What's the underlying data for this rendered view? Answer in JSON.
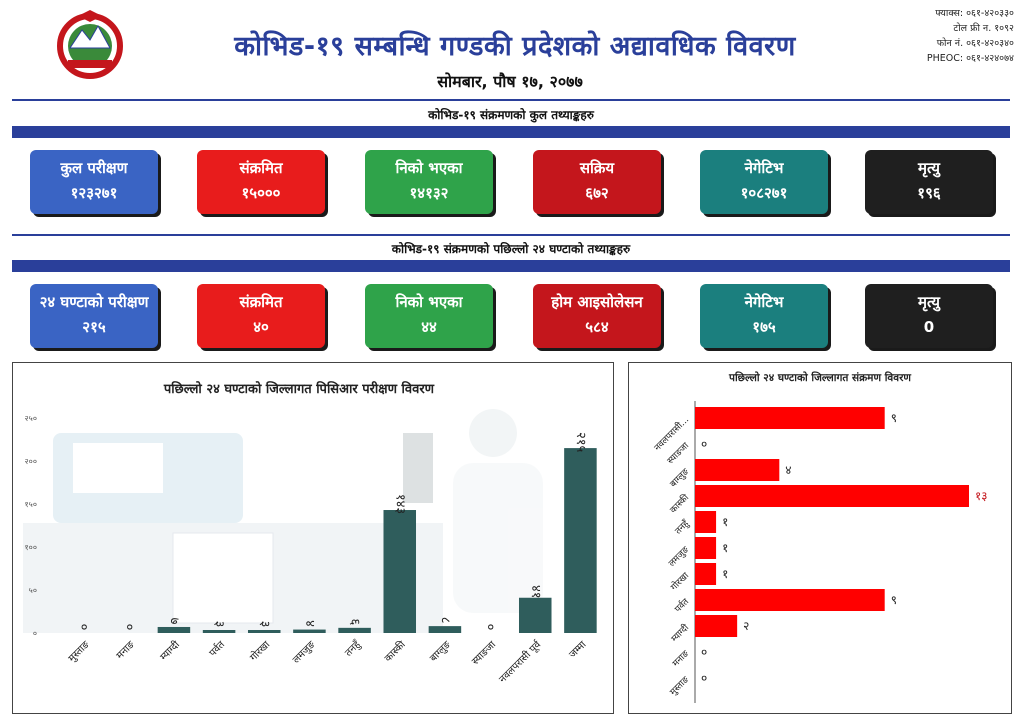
{
  "header": {
    "title": "कोभिड-१९ सम्बन्धि गण्डकी प्रदेशको अद्यावधिक विवरण",
    "date": "सोमबार, पौष १७, २०७७",
    "contact": [
      "फ्याक्स: ०६१-४२०३३०",
      "टोल फ्री न. १०९२",
      "फोन नं. ०६१-४२०३४०",
      "PHEOC: ०६१-४२४०७४"
    ]
  },
  "totals": {
    "heading": "कोभिड-१९ संक्रमणको कुल तथ्याङ्कहरु",
    "cards": [
      {
        "label": "कुल परीक्षण",
        "value": "१२३२७१",
        "color": "blue"
      },
      {
        "label": "संक्रमित",
        "value": "१५०००",
        "color": "red"
      },
      {
        "label": "निको भएका",
        "value": "१४१३२",
        "color": "green"
      },
      {
        "label": "सक्रिय",
        "value": "६७२",
        "color": "dred"
      },
      {
        "label": "नेगेटिभ",
        "value": "१०८२७१",
        "color": "teal"
      },
      {
        "label": "मृत्यु",
        "value": "१९६",
        "color": "black"
      }
    ]
  },
  "last24": {
    "heading": "कोभिड-१९ संक्रमणको पछिल्लो २४ घण्टाको तथ्याङ्कहरु",
    "cards": [
      {
        "label": "२४ घण्टाको परीक्षण",
        "value": "२१५",
        "color": "blue"
      },
      {
        "label": "संक्रमित",
        "value": "४०",
        "color": "red"
      },
      {
        "label": "निको भएका",
        "value": "४४",
        "color": "green"
      },
      {
        "label": "होम आइसोलेसन",
        "value": "५८४",
        "color": "dred"
      },
      {
        "label": "नेगेटिभ",
        "value": "१७५",
        "color": "teal"
      },
      {
        "label": "मृत्यु",
        "value": "0",
        "color": "black"
      }
    ]
  },
  "colors": {
    "blue": "#3a64c4",
    "red": "#e81c1c",
    "green": "#2fa34a",
    "dred": "#c4161c",
    "teal": "#1b7f7e",
    "black": "#1f1f1f",
    "bar_dark": "#2f5d5c",
    "bar_red": "#ff0000",
    "brand": "#2a3f9a"
  },
  "chart_data": [
    {
      "type": "bar",
      "title": "पछिल्लो २४ घण्टाको जिल्लागत पिसिआर परीक्षण विवरण",
      "categories": [
        "मुस्ताङ",
        "मनाङ",
        "म्याग्दी",
        "पर्वत",
        "गोरखा",
        "लमजुङ",
        "तनहुँ",
        "कास्की",
        "बाग्लुङ",
        "स्याङजा",
        "नवलपरासी पूर्व",
        "जम्मा"
      ],
      "values": [
        0,
        0,
        7,
        3,
        3,
        4,
        6,
        143,
        8,
        0,
        41,
        215
      ],
      "value_labels": [
        "०",
        "०",
        "७",
        "३",
        "३",
        "४",
        "६",
        "१४३",
        "८",
        "०",
        "४१",
        "२१५"
      ],
      "yticks": [
        0,
        50,
        100,
        150,
        200,
        250
      ],
      "ytick_labels": [
        "०",
        "५०",
        "१००",
        "१५०",
        "२००",
        "२५०"
      ],
      "ylim": [
        0,
        250
      ]
    },
    {
      "type": "bar",
      "orientation": "horizontal",
      "title": "पछिल्लो २४ घण्टाको जिल्लागत संक्रमण विवरण",
      "categories": [
        "नवलपरासी...",
        "स्याङजा",
        "बाग्लुङ",
        "कास्की",
        "तनहुँ",
        "लमजुङ",
        "गोरखा",
        "पर्वत",
        "म्याग्दी",
        "मनाङ",
        "मुस्ताङ"
      ],
      "values": [
        9,
        0,
        4,
        13,
        1,
        1,
        1,
        9,
        2,
        0,
        0
      ],
      "value_labels": [
        "९",
        "०",
        "४",
        "१३",
        "१",
        "१",
        "१",
        "९",
        "२",
        "०",
        "०"
      ],
      "xlim": [
        0,
        13
      ]
    }
  ]
}
